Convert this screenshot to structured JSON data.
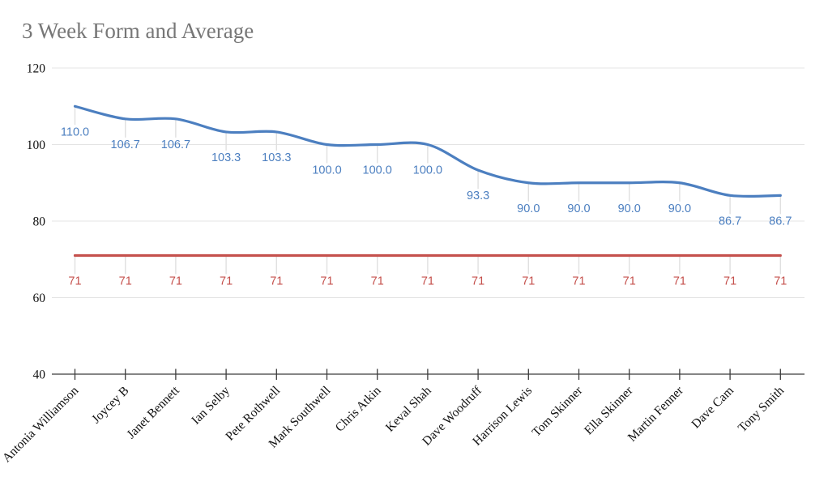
{
  "title": "3 Week Form and Average",
  "theme": {
    "title_color": "#777777",
    "grid": "#e4e4e4",
    "stub": "#e0e0e0",
    "axis": "#3c3c3c",
    "form_blue": "#4c7fc0",
    "average_red": "#c5514d"
  },
  "chart_data": {
    "type": "line",
    "title": "3 Week Form and Average",
    "categories": [
      "Antonia Williamson",
      "Joycey B",
      "Janet Bennett",
      "Ian Selby",
      "Pete Rothwell",
      "Mark Southwell",
      "Chris Atkin",
      "Keval Shah",
      "Dave Woodruff",
      "Harrison Lewis",
      "Tom Skinner",
      "Ella Skinner",
      "Martin Fenner",
      "Dave Cam",
      "Tony Smith"
    ],
    "series": [
      {
        "id": "form",
        "name": "3 Week Form",
        "color": "#4c7fc0",
        "smooth": true,
        "values": [
          110,
          106.7,
          106.7,
          103.3,
          103.3,
          100,
          100,
          100,
          93.3,
          90,
          90,
          90,
          90,
          86.7,
          86.7
        ],
        "labels": [
          "110.0",
          "106.7",
          "106.7",
          "103.3",
          "103.3",
          "100.0",
          "100.0",
          "100.0",
          "93.3",
          "90.0",
          "90.0",
          "90.0",
          "90.0",
          "86.7",
          "86.7"
        ]
      },
      {
        "id": "average",
        "name": "Average",
        "color": "#c5514d",
        "smooth": false,
        "values": [
          71,
          71,
          71,
          71,
          71,
          71,
          71,
          71,
          71,
          71,
          71,
          71,
          71,
          71,
          71
        ],
        "labels": [
          "71",
          "71",
          "71",
          "71",
          "71",
          "71",
          "71",
          "71",
          "71",
          "71",
          "71",
          "71",
          "71",
          "71",
          "71"
        ]
      }
    ],
    "ylim": [
      40,
      120
    ],
    "yticks": [
      40,
      60,
      80,
      100,
      120
    ],
    "grid": true,
    "legend": "none",
    "data_labels": true
  }
}
